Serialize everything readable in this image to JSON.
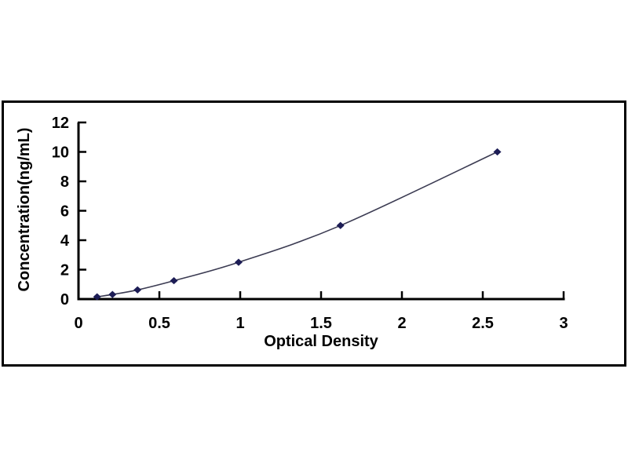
{
  "figure": {
    "background": "#ffffff",
    "frame_border_color": "#000000"
  },
  "chart_data": {
    "type": "line",
    "subtype": "scatter-with-smooth-line",
    "title": "",
    "xlabel": "Optical Density",
    "ylabel": "Concentration(ng/mL)",
    "x": [
      0.115,
      0.21,
      0.365,
      0.59,
      0.99,
      1.62,
      2.59
    ],
    "y": [
      0.156,
      0.312,
      0.625,
      1.25,
      2.5,
      5.0,
      10.0
    ],
    "xlim": [
      0,
      3
    ],
    "ylim": [
      0,
      12
    ],
    "x_tick_values": [
      0,
      0.5,
      1,
      1.5,
      2,
      2.5,
      3
    ],
    "x_tick_labels": [
      "0",
      "0.5",
      "1",
      "1.5",
      "2",
      "2.5",
      "3"
    ],
    "y_tick_values": [
      0,
      2,
      4,
      6,
      8,
      10,
      12
    ],
    "y_tick_labels": [
      "0",
      "2",
      "4",
      "6",
      "8",
      "10",
      "12"
    ],
    "grid": false,
    "legend": "none",
    "marker": "diamond",
    "marker_color": "#1d1d56",
    "line_color": "#3b3b52",
    "axis_color": "#000000",
    "tick_direction": "in",
    "smooth": true
  }
}
